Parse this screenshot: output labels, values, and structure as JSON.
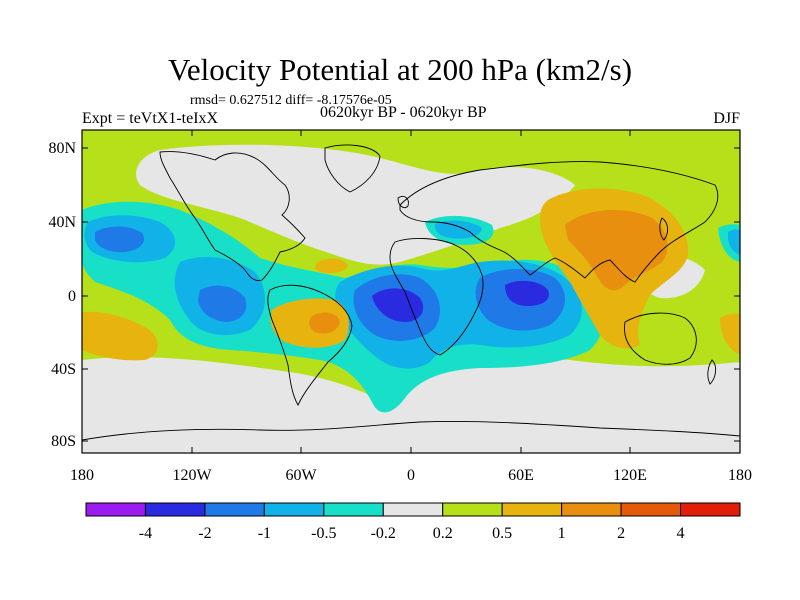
{
  "header": {
    "title": "Velocity Potential at 200 hPa (km2/s)",
    "stats": "rmsd= 0.627512 diff= -8.17576e-05",
    "experiment": "Expt = teVtX1-teIxX",
    "period": "0620kyr BP - 0620kyr BP",
    "season": "DJF"
  },
  "axes": {
    "lon_ticks": [
      "180",
      "120W",
      "60W",
      "0",
      "60E",
      "120E",
      "180"
    ],
    "lat_ticks": [
      "80N",
      "40N",
      "0",
      "40S",
      "80S"
    ]
  },
  "colorbar": {
    "colors": [
      "#9b1cf0",
      "#2a2ae0",
      "#1f7ae8",
      "#11b2e8",
      "#18e0c8",
      "#e6e6e6",
      "#b6e11a",
      "#e6b30f",
      "#e88f10",
      "#e55a0a",
      "#e01e0a"
    ],
    "labels": [
      "-4",
      "-2",
      "-1",
      "-0.5",
      "-0.2",
      "0.2",
      "0.5",
      "1",
      "2",
      "4"
    ]
  },
  "palette": {
    "neutral": "#e6e6e6",
    "pos_02": "#b6e11a",
    "pos_05": "#e6b30f",
    "pos_1": "#e88f10",
    "pos_2": "#e55a0a",
    "neg_02": "#18e0c8",
    "neg_05": "#11b2e8",
    "neg_1": "#1f7ae8",
    "neg_2": "#2a2ae0",
    "coast": "#000000"
  }
}
